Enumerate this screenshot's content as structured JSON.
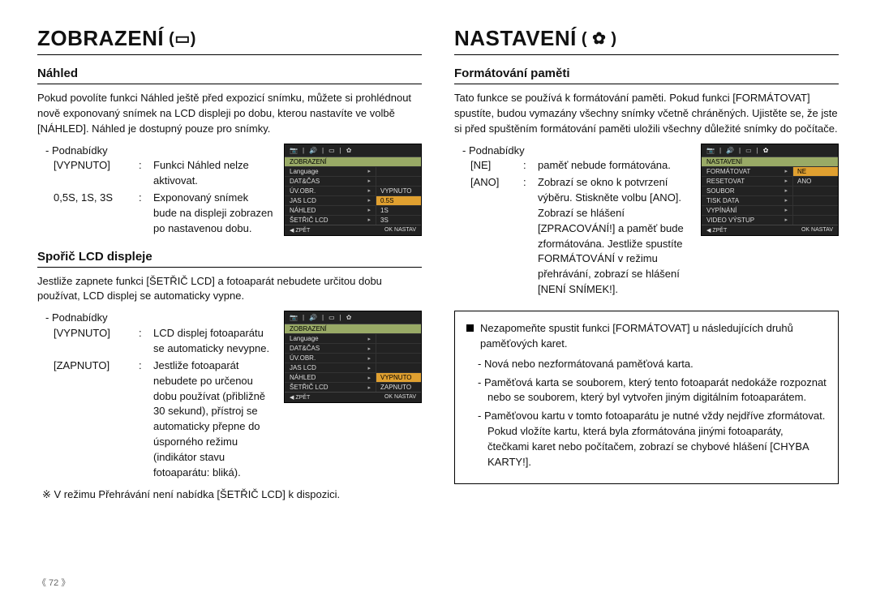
{
  "page_number": "《 72 》",
  "left": {
    "title": "ZOBRAZENÍ",
    "title_icon": "display-icon",
    "sec1": {
      "heading": "Náhled",
      "para": "Pokud povolíte funkci Náhled ještě před expozicí snímku, můžete si prohlédnout nově exponovaný snímek na LCD displeji po dobu, kterou nastavíte ve volbě [NÁHLED]. Náhled je dostupný pouze pro snímky.",
      "subs_label": "Podnabídky",
      "defs": [
        {
          "k": "[VYPNUTO]",
          "v": "Funkci Náhled nelze aktivovat."
        },
        {
          "k": "0,5S, 1S, 3S",
          "v": "Exponovaný snímek bude na displeji zobrazen po nastavenou dobu."
        }
      ],
      "menu": {
        "header": "ZOBRAZENÍ",
        "rows": [
          {
            "l": "Language",
            "r": ""
          },
          {
            "l": "DAT&ČAS",
            "r": ""
          },
          {
            "l": "ÚV.OBR.",
            "r": "VYPNUTO"
          },
          {
            "l": "JAS LCD",
            "r": "0.5S",
            "hl": true
          },
          {
            "l": "NÁHLED",
            "r": "1S"
          },
          {
            "l": "ŠETŘIČ LCD",
            "r": "3S"
          }
        ],
        "foot_back": "◀  ZPĚT",
        "foot_ok": "OK  NASTAV"
      }
    },
    "sec2": {
      "heading": "Spořič LCD displeje",
      "para": "Jestliže zapnete funkci [ŠETŘIČ LCD] a fotoaparát nebudete určitou dobu používat, LCD displej se automaticky vypne.",
      "subs_label": "Podnabídky",
      "defs": [
        {
          "k": "[VYPNUTO]",
          "v": "LCD displej fotoaparátu se automaticky nevypne."
        },
        {
          "k": "[ZAPNUTO]",
          "v": "Jestliže fotoaparát nebudete po určenou dobu používat (přibližně 30 sekund), přístroj se automaticky přepne do úsporného režimu (indikátor stavu fotoaparátu: bliká)."
        }
      ],
      "note": "V režimu Přehrávání není nabídka [ŠETŘIČ LCD] k dispozici.",
      "menu": {
        "header": "ZOBRAZENÍ",
        "rows": [
          {
            "l": "Language",
            "r": ""
          },
          {
            "l": "DAT&ČAS",
            "r": ""
          },
          {
            "l": "ÚV.OBR.",
            "r": ""
          },
          {
            "l": "JAS LCD",
            "r": ""
          },
          {
            "l": "NÁHLED",
            "r": "VYPNUTO",
            "hl": true
          },
          {
            "l": "ŠETŘIČ LCD",
            "r": "ZAPNUTO"
          }
        ],
        "foot_back": "◀  ZPĚT",
        "foot_ok": "OK  NASTAV"
      }
    }
  },
  "right": {
    "title": "NASTAVENÍ",
    "title_icon": "gear-icon",
    "sec1": {
      "heading": "Formátování paměti",
      "para": "Tato funkce se používá k formátování paměti. Pokud funkci [FORMÁTOVAT] spustíte, budou vymazány všechny snímky včetně chráněných. Ujistěte se, že jste si před spuštěním formátování paměti uložili všechny důležité snímky do počítače.",
      "subs_label": "Podnabídky",
      "defs": [
        {
          "k": "[NE]",
          "v": "paměť nebude formátována."
        },
        {
          "k": "[ANO]",
          "v": "Zobrazí se okno k potvrzení výběru. Stiskněte volbu [ANO]. Zobrazí se hlášení [ZPRACOVÁNÍ!] a paměť bude zformátována. Jestliže spustíte FORMÁTOVÁNÍ v režimu přehrávání, zobrazí se hlášení [NENÍ SNÍMEK!]."
        }
      ],
      "menu": {
        "header": "NASTAVENÍ",
        "rows": [
          {
            "l": "FORMÁTOVAT",
            "r": "NE",
            "hl": true
          },
          {
            "l": "RESETOVAT",
            "r": "ANO"
          },
          {
            "l": "SOUBOR",
            "r": ""
          },
          {
            "l": "TISK DATA",
            "r": ""
          },
          {
            "l": "VYPÍNÁNÍ",
            "r": ""
          },
          {
            "l": "VIDEO VÝSTUP",
            "r": ""
          }
        ],
        "foot_back": "◀  ZPĚT",
        "foot_ok": "OK  NASTAV"
      },
      "notice_lead": "Nezapomeňte spustit funkci [FORMÁTOVAT] u následujících druhů paměťových karet.",
      "notice_items": [
        "Nová nebo nezformátovaná paměťová karta.",
        "Paměťová karta se souborem, který tento fotoaparát nedokáže rozpoznat nebo se souborem, který byl vytvořen jiným digitálním fotoaparátem.",
        "Paměťovou kartu v tomto fotoaparátu je nutné vždy nejdříve zformátovat. Pokud vložíte kartu, která byla zformátována jinými fotoaparáty, čtečkami karet nebo počítačem, zobrazí se chybové hlášení [CHYBA KARTY!]."
      ]
    }
  },
  "icons": {
    "camera": "📷",
    "sound": "🔊",
    "display": "▭",
    "gear": "✿"
  }
}
